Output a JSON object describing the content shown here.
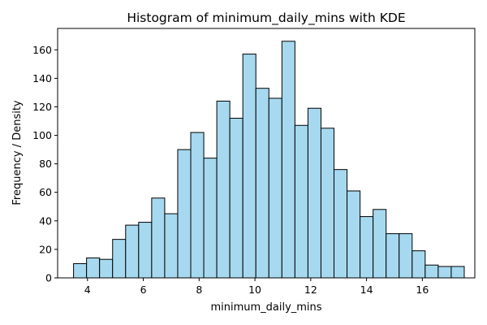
{
  "chart_data": {
    "type": "bar",
    "title": "Histogram of minimum_daily_mins with KDE",
    "xlabel": "minimum_daily_mins",
    "ylabel": "Frequency / Density",
    "xlim": [
      2.93,
      17.88
    ],
    "ylim": [
      0,
      175
    ],
    "xticks": [
      4,
      6,
      8,
      10,
      12,
      14,
      16
    ],
    "yticks": [
      0,
      20,
      40,
      60,
      80,
      100,
      120,
      140,
      160
    ],
    "bin_start": 3.5,
    "bin_width": 0.4667,
    "values": [
      10,
      14,
      13,
      27,
      37,
      39,
      56,
      45,
      90,
      102,
      84,
      124,
      112,
      157,
      133,
      126,
      166,
      107,
      119,
      105,
      76,
      61,
      43,
      48,
      31,
      31,
      19,
      9,
      8,
      8
    ],
    "bar_color": "#a6d9ef",
    "edge_color": "#000000",
    "grid": false
  }
}
